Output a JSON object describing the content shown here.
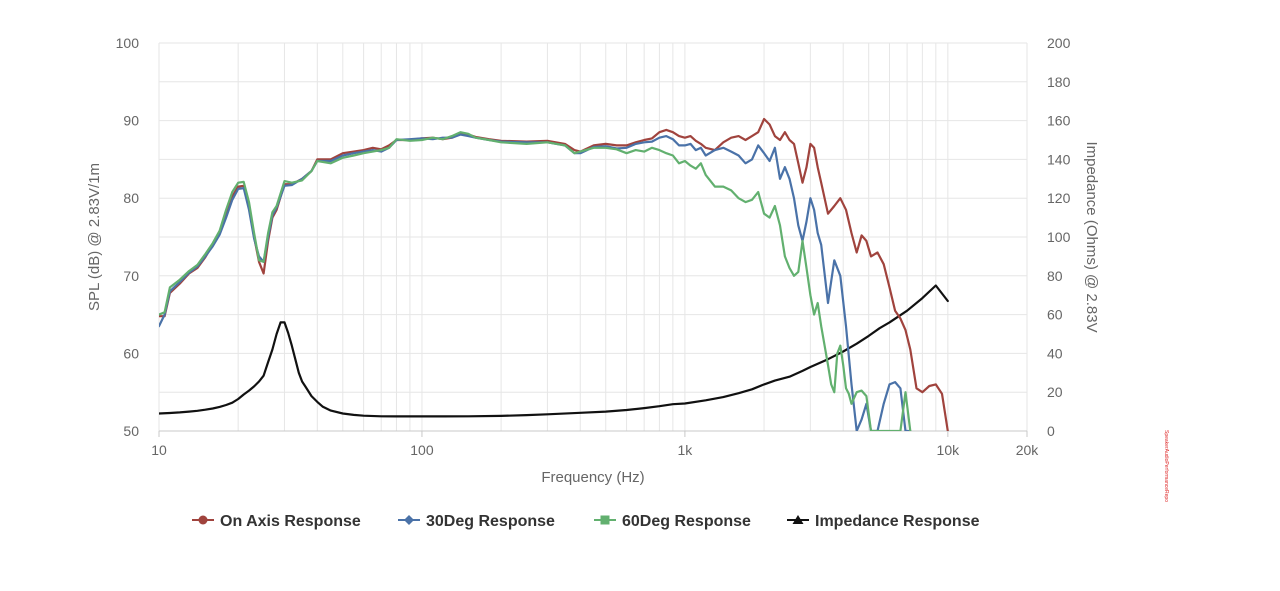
{
  "chart_data": {
    "type": "line",
    "title": "",
    "xlabel": "Frequency (Hz)",
    "ylabel": "SPL (dB) @ 2.83V/1m",
    "y2label": "Impedance (Ohms) @ 2.83V",
    "x_scale": "log",
    "xlim": [
      10,
      20000
    ],
    "ylim": [
      50,
      100
    ],
    "y2lim": [
      0,
      200
    ],
    "x_ticks": [
      {
        "value": 10,
        "label": "10"
      },
      {
        "value": 100,
        "label": "100"
      },
      {
        "value": 1000,
        "label": "1k"
      },
      {
        "value": 10000,
        "label": "10k"
      },
      {
        "value": 20000,
        "label": "20k"
      }
    ],
    "y_ticks": [
      "50",
      "60",
      "70",
      "80",
      "90",
      "100"
    ],
    "y2_ticks": [
      "0",
      "20",
      "40",
      "60",
      "80",
      "100",
      "120",
      "140",
      "160",
      "180",
      "200"
    ],
    "grid": true,
    "legend_position": "bottom",
    "series": [
      {
        "name": "On Axis Response",
        "axis": "left",
        "color": "#a0433d",
        "marker": "circle",
        "x": [
          10,
          10.5,
          11,
          12,
          13,
          14,
          15,
          16,
          17,
          18,
          19,
          20,
          21,
          22,
          23,
          24,
          25,
          26,
          27,
          28,
          30,
          32,
          35,
          38,
          40,
          45,
          50,
          55,
          60,
          65,
          70,
          75,
          80,
          90,
          100,
          110,
          120,
          130,
          140,
          150,
          160,
          180,
          200,
          250,
          300,
          350,
          380,
          400,
          450,
          500,
          550,
          600,
          650,
          700,
          750,
          800,
          850,
          900,
          950,
          1000,
          1050,
          1100,
          1150,
          1200,
          1300,
          1400,
          1500,
          1600,
          1700,
          1800,
          1900,
          2000,
          2100,
          2200,
          2300,
          2400,
          2500,
          2600,
          2700,
          2800,
          2900,
          3000,
          3100,
          3200,
          3300,
          3500,
          3700,
          3900,
          4100,
          4300,
          4500,
          4700,
          4900,
          5100,
          5400,
          5700,
          6000,
          6300,
          6600,
          6900,
          7200,
          7600,
          8000,
          8500,
          9000,
          9500,
          10000
        ],
        "values": [
          64.8,
          64.8,
          67.8,
          69.0,
          70.3,
          71.0,
          72.4,
          74.0,
          75.5,
          78.0,
          80.2,
          81.5,
          81.6,
          78.8,
          75.0,
          71.8,
          70.3,
          74.5,
          77.5,
          78.5,
          81.8,
          81.8,
          82.5,
          83.5,
          85.0,
          85.0,
          85.8,
          86.0,
          86.2,
          86.5,
          86.3,
          86.8,
          87.5,
          87.5,
          87.7,
          87.8,
          87.6,
          87.8,
          88.3,
          88.2,
          87.9,
          87.6,
          87.4,
          87.3,
          87.4,
          87.0,
          86.2,
          86.0,
          86.8,
          87.0,
          86.8,
          86.8,
          87.2,
          87.5,
          87.7,
          88.5,
          88.8,
          88.5,
          88.0,
          87.8,
          88.0,
          87.4,
          87.0,
          86.5,
          86.2,
          87.2,
          87.8,
          88.0,
          87.5,
          88.0,
          88.5,
          90.2,
          89.5,
          88.0,
          87.5,
          88.5,
          87.5,
          87.0,
          84.5,
          82.0,
          84.0,
          87.0,
          86.5,
          84.0,
          82.0,
          78.0,
          79.0,
          80.0,
          78.5,
          75.5,
          73.0,
          75.2,
          74.5,
          72.5,
          73.0,
          71.5,
          68.5,
          65.5,
          64.5,
          63.0,
          60.5,
          55.5,
          55.0,
          55.8,
          56.0,
          54.8,
          50.0
        ]
      },
      {
        "name": "30Deg Response",
        "axis": "left",
        "color": "#4a72a8",
        "marker": "diamond",
        "x": [
          10,
          10.5,
          11,
          12,
          13,
          14,
          15,
          16,
          17,
          18,
          19,
          20,
          21,
          22,
          23,
          24,
          25,
          26,
          27,
          28,
          30,
          32,
          35,
          38,
          40,
          45,
          50,
          55,
          60,
          65,
          70,
          75,
          80,
          90,
          100,
          110,
          120,
          130,
          140,
          150,
          160,
          180,
          200,
          250,
          300,
          350,
          380,
          400,
          450,
          500,
          550,
          600,
          650,
          700,
          750,
          800,
          850,
          900,
          950,
          1000,
          1050,
          1100,
          1150,
          1200,
          1300,
          1400,
          1500,
          1600,
          1700,
          1800,
          1900,
          2000,
          2100,
          2200,
          2300,
          2400,
          2500,
          2600,
          2700,
          2800,
          2900,
          3000,
          3100,
          3200,
          3300,
          3500,
          3700,
          3900,
          4100,
          4300,
          4500,
          4700,
          4900,
          5100,
          5400,
          5700,
          6000,
          6300,
          6600,
          6900,
          7200
        ],
        "values": [
          63.5,
          65.0,
          68.0,
          69.2,
          70.4,
          71.2,
          72.5,
          73.8,
          75.3,
          77.5,
          79.8,
          81.2,
          81.3,
          78.5,
          74.8,
          72.5,
          71.8,
          75.0,
          77.8,
          78.8,
          81.6,
          81.7,
          82.5,
          83.5,
          84.8,
          84.8,
          85.5,
          85.8,
          86.0,
          86.2,
          86.0,
          86.5,
          87.5,
          87.6,
          87.7,
          87.6,
          87.8,
          87.8,
          88.2,
          88.0,
          87.8,
          87.5,
          87.3,
          87.2,
          87.2,
          86.8,
          85.8,
          85.8,
          86.6,
          86.7,
          86.4,
          86.5,
          87.0,
          87.2,
          87.3,
          87.8,
          88.0,
          87.6,
          86.8,
          86.8,
          87.0,
          86.2,
          86.5,
          85.5,
          86.2,
          86.5,
          86.0,
          85.5,
          84.5,
          85.0,
          86.8,
          85.8,
          84.8,
          86.5,
          82.5,
          84.0,
          82.5,
          80.0,
          76.5,
          74.5,
          77.0,
          80.0,
          78.5,
          75.5,
          74.0,
          66.5,
          72.0,
          70.0,
          63.5,
          56.0,
          50.0,
          51.5,
          53.5,
          50.0,
          50.0,
          53.5,
          56.0,
          56.3,
          55.5,
          50.0,
          50.0
        ]
      },
      {
        "name": "60Deg Response",
        "axis": "left",
        "color": "#62b06f",
        "marker": "square",
        "x": [
          10,
          10.5,
          11,
          12,
          13,
          14,
          15,
          16,
          17,
          18,
          19,
          20,
          21,
          22,
          23,
          24,
          25,
          26,
          27,
          28,
          30,
          32,
          35,
          38,
          40,
          45,
          50,
          55,
          60,
          65,
          70,
          75,
          80,
          90,
          100,
          110,
          120,
          130,
          140,
          150,
          160,
          180,
          200,
          250,
          300,
          350,
          380,
          400,
          450,
          500,
          550,
          600,
          650,
          700,
          750,
          800,
          850,
          900,
          950,
          1000,
          1050,
          1100,
          1150,
          1200,
          1300,
          1400,
          1500,
          1600,
          1700,
          1800,
          1900,
          2000,
          2100,
          2200,
          2300,
          2400,
          2500,
          2600,
          2700,
          2800,
          2900,
          3000,
          3100,
          3200,
          3300,
          3400,
          3500,
          3600,
          3700,
          3800,
          3900,
          4000,
          4100,
          4200,
          4300,
          4500,
          4700,
          4900,
          5100,
          5400,
          5700,
          6000,
          6300,
          6600,
          6900,
          7200
        ],
        "values": [
          65.0,
          65.3,
          68.5,
          69.5,
          70.6,
          71.4,
          72.8,
          74.2,
          75.8,
          78.5,
          80.8,
          82.0,
          82.1,
          79.5,
          75.5,
          72.0,
          71.8,
          75.5,
          78.2,
          79.0,
          82.2,
          82.0,
          82.3,
          83.5,
          84.8,
          84.5,
          85.2,
          85.5,
          85.8,
          86.0,
          86.2,
          86.5,
          87.6,
          87.4,
          87.5,
          87.8,
          87.6,
          88.0,
          88.5,
          88.3,
          87.8,
          87.5,
          87.2,
          87.0,
          87.2,
          86.8,
          85.8,
          86.0,
          86.5,
          86.5,
          86.3,
          85.8,
          86.2,
          86.0,
          86.5,
          86.2,
          85.8,
          85.5,
          84.5,
          84.8,
          84.2,
          83.8,
          84.5,
          83.0,
          81.5,
          81.5,
          81.0,
          80.0,
          79.5,
          79.8,
          80.8,
          78.0,
          77.5,
          79.0,
          76.5,
          72.5,
          71.0,
          70.0,
          70.5,
          74.5,
          71.0,
          67.5,
          65.0,
          66.5,
          63.5,
          61.0,
          58.5,
          56.0,
          55.0,
          60.0,
          61.0,
          58.5,
          55.5,
          54.8,
          53.5,
          55.0,
          55.2,
          54.5,
          50.0,
          50.0,
          50.0,
          50.0,
          50.0,
          50.0,
          55.0,
          50.0
        ]
      },
      {
        "name": "Impedance Response",
        "axis": "right",
        "color": "#111111",
        "marker": "triangle",
        "x": [
          10,
          11,
          12,
          13,
          14,
          15,
          16,
          17,
          18,
          19,
          20,
          21,
          22,
          23,
          24,
          25,
          26,
          27,
          28,
          29,
          30,
          31,
          32,
          33,
          34,
          35,
          36,
          38,
          40,
          42,
          45,
          50,
          55,
          60,
          70,
          80,
          100,
          120,
          150,
          200,
          250,
          300,
          400,
          500,
          600,
          700,
          800,
          900,
          1000,
          1200,
          1400,
          1600,
          1800,
          2000,
          2200,
          2500,
          2800,
          3000,
          3500,
          4000,
          4500,
          5000,
          5500,
          6000,
          7000,
          8000,
          9000,
          10000
        ],
        "values": [
          9.0,
          9.3,
          9.6,
          10.0,
          10.4,
          11.0,
          11.6,
          12.4,
          13.4,
          14.6,
          16.5,
          18.8,
          20.8,
          23.0,
          25.5,
          28.5,
          35.5,
          42.0,
          50.0,
          56.0,
          56.0,
          50.5,
          44.0,
          37.0,
          30.0,
          25.5,
          23.0,
          18.0,
          15.0,
          12.5,
          10.5,
          9.0,
          8.3,
          7.9,
          7.6,
          7.5,
          7.5,
          7.5,
          7.6,
          7.8,
          8.2,
          8.6,
          9.4,
          10.0,
          10.8,
          11.8,
          12.8,
          13.8,
          14.2,
          15.8,
          17.5,
          19.5,
          21.5,
          24.0,
          26.0,
          28.0,
          31.0,
          33.0,
          37.0,
          41.0,
          45.0,
          49.0,
          53.0,
          56.0,
          62.0,
          68.5,
          75.0,
          67.0
        ]
      }
    ]
  },
  "watermark": "SpeakerAudioPerformanceReport"
}
